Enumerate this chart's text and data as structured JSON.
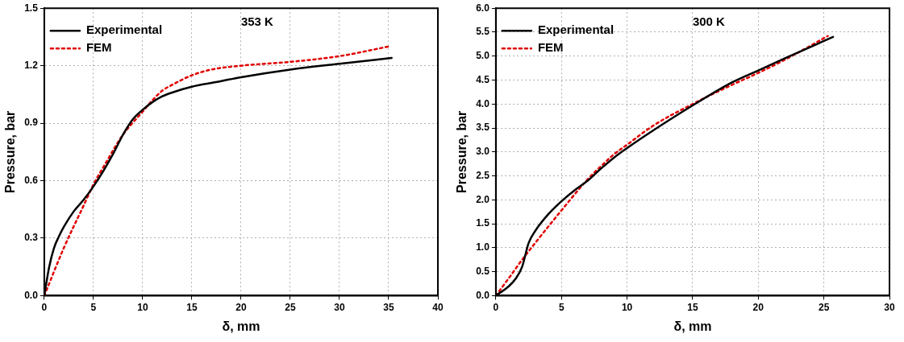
{
  "chart_data": [
    {
      "type": "line",
      "title": "353 K",
      "xlabel": "δ, mm",
      "ylabel": "Pressure, bar",
      "xlim": [
        0,
        40
      ],
      "xticks": [
        0,
        5,
        10,
        15,
        20,
        25,
        30,
        35,
        40
      ],
      "ylim": [
        0,
        1.5
      ],
      "yticks": [
        {
          "value": 0,
          "label": "0.0"
        },
        {
          "value": 0.3,
          "label": "0.3"
        },
        {
          "value": 0.6,
          "label": "0.6"
        },
        {
          "value": 0.9,
          "label": "0.9"
        },
        {
          "value": 1.2,
          "label": "1.2"
        },
        {
          "value": 1.5,
          "label": "1.5"
        }
      ],
      "grid": true,
      "legend": "top left",
      "marker": "none",
      "series": [
        {
          "name": "Experimental",
          "color": "#000000",
          "line_style": "solid",
          "x": [
            0,
            0.5,
            1,
            1.5,
            2,
            3,
            4,
            5,
            6,
            7,
            8,
            9,
            10,
            11,
            12,
            13,
            15,
            18,
            20,
            25,
            30,
            35.3
          ],
          "values": [
            0,
            0.15,
            0.25,
            0.31,
            0.36,
            0.44,
            0.5,
            0.57,
            0.65,
            0.74,
            0.84,
            0.92,
            0.97,
            1.01,
            1.04,
            1.06,
            1.09,
            1.12,
            1.14,
            1.18,
            1.21,
            1.24
          ]
        },
        {
          "name": "FEM",
          "color": "#e00000",
          "line_style": "dotted",
          "x": [
            0,
            2,
            4,
            5,
            6,
            8,
            10,
            11,
            12,
            13,
            15,
            17,
            20,
            25,
            30,
            35
          ],
          "values": [
            0,
            0.25,
            0.47,
            0.58,
            0.67,
            0.84,
            0.96,
            1.02,
            1.07,
            1.1,
            1.15,
            1.18,
            1.2,
            1.22,
            1.25,
            1.3
          ]
        }
      ]
    },
    {
      "type": "line",
      "title": "300 K",
      "xlabel": "δ, mm",
      "ylabel": "Pressure, bar",
      "xlim": [
        0,
        30
      ],
      "xticks": [
        0,
        5,
        10,
        15,
        20,
        25,
        30
      ],
      "ylim": [
        0,
        6
      ],
      "yticks": [
        {
          "value": 0,
          "label": "0.0"
        },
        {
          "value": 0.5,
          "label": "0.5"
        },
        {
          "value": 1,
          "label": "1.0"
        },
        {
          "value": 1.5,
          "label": "1.5"
        },
        {
          "value": 2,
          "label": "2.0"
        },
        {
          "value": 2.5,
          "label": "2.5"
        },
        {
          "value": 3,
          "label": "3.0"
        },
        {
          "value": 3.5,
          "label": "3.5"
        },
        {
          "value": 4,
          "label": "4.0"
        },
        {
          "value": 4.5,
          "label": "4.5"
        },
        {
          "value": 5,
          "label": "5.0"
        },
        {
          "value": 5.5,
          "label": "5.5"
        },
        {
          "value": 6,
          "label": "6.0"
        }
      ],
      "grid": true,
      "legend": "top left",
      "marker": "none",
      "series": [
        {
          "name": "Experimental",
          "color": "#000000",
          "line_style": "solid",
          "x": [
            0,
            1,
            1.5,
            2,
            2.5,
            3,
            4,
            5,
            6,
            7,
            8,
            9,
            10,
            12,
            15,
            18,
            20,
            22,
            25.7
          ],
          "values": [
            0,
            0.2,
            0.35,
            0.6,
            1.1,
            1.35,
            1.7,
            1.97,
            2.2,
            2.4,
            2.65,
            2.88,
            3.08,
            3.45,
            3.97,
            4.45,
            4.7,
            4.95,
            5.4
          ]
        },
        {
          "name": "FEM",
          "color": "#e00000",
          "line_style": "dotted",
          "x": [
            0,
            1,
            2,
            3,
            5,
            7,
            8,
            9,
            10,
            12,
            15,
            18,
            20,
            22,
            25.3
          ],
          "values": [
            0,
            0.37,
            0.75,
            1.1,
            1.78,
            2.43,
            2.7,
            2.95,
            3.15,
            3.55,
            4.0,
            4.4,
            4.65,
            4.92,
            5.42
          ]
        }
      ]
    }
  ]
}
